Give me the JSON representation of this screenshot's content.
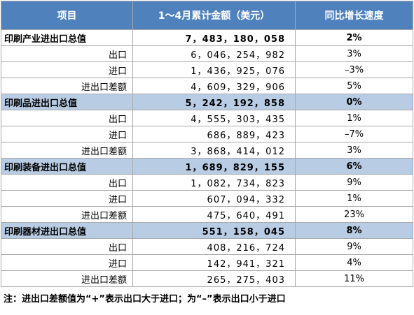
{
  "header": {
    "col1": "项目",
    "col2": "1～4月累计金额（美元）",
    "col3": "同比增长速度"
  },
  "rows": [
    {
      "label": "印刷产业进出口总值",
      "amount": "7，483，180，058",
      "growth": "2%"
    },
    {
      "label": "出口",
      "amount": "6，046，254，982",
      "growth": "3%"
    },
    {
      "label": "进口",
      "amount": "1，436，925，076",
      "growth": "–3%"
    },
    {
      "label": "进出口差额",
      "amount": "4，609，329，906",
      "growth": "5%"
    },
    {
      "label": "印刷品进出口总值",
      "amount": "5，242，192，858",
      "growth": "0%"
    },
    {
      "label": "出口",
      "amount": "4，555，303，435",
      "growth": "1%"
    },
    {
      "label": "进口",
      "amount": "686，889，423",
      "growth": "–7%"
    },
    {
      "label": "进出口差额",
      "amount": "3，868，414，012",
      "growth": "3%"
    },
    {
      "label": "印刷装备进出口总值",
      "amount": "1，689，829，155",
      "growth": "6%"
    },
    {
      "label": "出口",
      "amount": "1，082，734，823",
      "growth": "9%"
    },
    {
      "label": "进口",
      "amount": "607，094，332",
      "growth": "1%"
    },
    {
      "label": "进出口差额",
      "amount": "475，640，491",
      "growth": "23%"
    },
    {
      "label": "印刷器材进出口总值",
      "amount": "551，158，045",
      "growth": "8%"
    },
    {
      "label": "出口",
      "amount": "408，216，724",
      "growth": "9%"
    },
    {
      "label": "进口",
      "amount": "142，941，321",
      "growth": "4%"
    },
    {
      "label": "进出口差额",
      "amount": "265，275，403",
      "growth": "11%"
    }
  ],
  "note": "注：进出口差额值为“+”表示出口大于进口；为“–”表示出口小于进口",
  "colors": {
    "header_bg": "#4f81bd",
    "group_shade": "#b8cce4"
  }
}
